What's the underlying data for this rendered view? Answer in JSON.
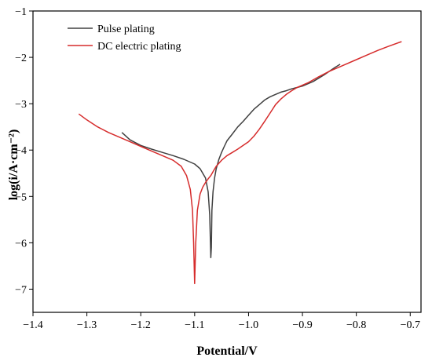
{
  "chart_data": {
    "type": "line",
    "title": "",
    "xlabel": "Potential/V",
    "ylabel": "log(i/A·cm⁻²)",
    "xlim": [
      -1.4,
      -0.68
    ],
    "ylim": [
      -7.5,
      -1.0
    ],
    "x_ticks": [
      -1.4,
      -1.3,
      -1.2,
      -1.1,
      -1.0,
      -0.9,
      -0.8,
      -0.7
    ],
    "x_tick_labels": [
      "−1.4",
      "−1.3",
      "−1.2",
      "−1.1",
      "−1.0",
      "−0.9",
      "−0.8",
      "−0.7"
    ],
    "y_ticks": [
      -7,
      -6,
      -5,
      -4,
      -3,
      -2,
      -1
    ],
    "y_tick_labels": [
      "−7",
      "−6",
      "−5",
      "−4",
      "−3",
      "−2",
      "−1"
    ],
    "legend_position": "top-left",
    "grid": false,
    "series": [
      {
        "name": "Pulse plating",
        "color": "#404040",
        "x": [
          -1.235,
          -1.22,
          -1.2,
          -1.18,
          -1.16,
          -1.14,
          -1.12,
          -1.1,
          -1.09,
          -1.08,
          -1.075,
          -1.072,
          -1.07,
          -1.069,
          -1.068,
          -1.066,
          -1.063,
          -1.06,
          -1.055,
          -1.05,
          -1.045,
          -1.04,
          -1.03,
          -1.02,
          -1.01,
          -1.0,
          -0.99,
          -0.98,
          -0.97,
          -0.96,
          -0.95,
          -0.94,
          -0.93,
          -0.92,
          -0.91,
          -0.9,
          -0.88,
          -0.86,
          -0.84,
          -0.83
        ],
        "y": [
          -3.62,
          -3.78,
          -3.9,
          -3.98,
          -4.05,
          -4.12,
          -4.2,
          -4.3,
          -4.4,
          -4.6,
          -4.9,
          -5.4,
          -6.32,
          -6.1,
          -5.3,
          -4.9,
          -4.6,
          -4.4,
          -4.2,
          -4.05,
          -3.92,
          -3.8,
          -3.65,
          -3.5,
          -3.38,
          -3.25,
          -3.12,
          -3.02,
          -2.92,
          -2.85,
          -2.8,
          -2.75,
          -2.72,
          -2.68,
          -2.65,
          -2.62,
          -2.52,
          -2.38,
          -2.22,
          -2.15
        ]
      },
      {
        "name": "DC electric plating",
        "color": "#d62c2c",
        "x": [
          -1.315,
          -1.3,
          -1.28,
          -1.26,
          -1.24,
          -1.22,
          -1.2,
          -1.18,
          -1.16,
          -1.14,
          -1.125,
          -1.115,
          -1.108,
          -1.104,
          -1.102,
          -1.1,
          -1.098,
          -1.095,
          -1.09,
          -1.085,
          -1.08,
          -1.075,
          -1.07,
          -1.065,
          -1.06,
          -1.05,
          -1.04,
          -1.03,
          -1.02,
          -1.01,
          -1.0,
          -0.99,
          -0.98,
          -0.97,
          -0.96,
          -0.95,
          -0.94,
          -0.93,
          -0.92,
          -0.91,
          -0.89,
          -0.87,
          -0.85,
          -0.83,
          -0.8,
          -0.78,
          -0.76,
          -0.74,
          -0.716
        ],
        "y": [
          -3.22,
          -3.35,
          -3.5,
          -3.62,
          -3.72,
          -3.82,
          -3.92,
          -4.02,
          -4.12,
          -4.22,
          -4.35,
          -4.55,
          -4.85,
          -5.3,
          -6.0,
          -6.88,
          -6.0,
          -5.3,
          -4.95,
          -4.8,
          -4.7,
          -4.62,
          -4.55,
          -4.45,
          -4.35,
          -4.22,
          -4.12,
          -4.05,
          -3.98,
          -3.9,
          -3.82,
          -3.7,
          -3.55,
          -3.38,
          -3.2,
          -3.02,
          -2.9,
          -2.8,
          -2.72,
          -2.65,
          -2.55,
          -2.42,
          -2.3,
          -2.2,
          -2.05,
          -1.95,
          -1.85,
          -1.76,
          -1.66
        ]
      }
    ]
  }
}
